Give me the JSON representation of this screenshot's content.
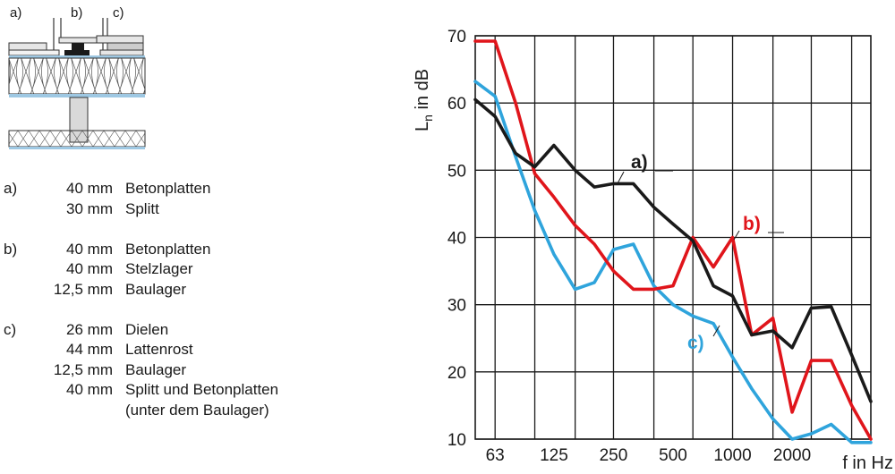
{
  "diagram": {
    "labels": [
      "a)",
      "b)",
      "c)"
    ]
  },
  "legend": [
    {
      "key": "a)",
      "layers": [
        {
          "thickness": "40 mm",
          "material": "Betonplatten"
        },
        {
          "thickness": "30 mm",
          "material": "Splitt"
        }
      ]
    },
    {
      "key": "b)",
      "layers": [
        {
          "thickness": "40 mm",
          "material": "Betonplatten"
        },
        {
          "thickness": "40 mm",
          "material": "Stelzlager"
        },
        {
          "thickness": "12,5 mm",
          "material": "Baulager"
        }
      ]
    },
    {
      "key": "c)",
      "layers": [
        {
          "thickness": "26 mm",
          "material": "Dielen"
        },
        {
          "thickness": "44 mm",
          "material": "Lattenrost"
        },
        {
          "thickness": "12,5 mm",
          "material": "Baulager"
        },
        {
          "thickness": "40 mm",
          "material": "Splitt und Betonplatten"
        },
        {
          "thickness": "",
          "material": "(unter dem Baulager)"
        }
      ]
    }
  ],
  "chart_data": {
    "type": "line",
    "ylabel": "Ln in dB",
    "ylabel_main": "L",
    "ylabel_sub": "n",
    "ylabel_rest": " in dB",
    "xlabel": "f in Hz",
    "ylim": [
      10,
      70
    ],
    "yticks": [
      "70",
      "60",
      "50",
      "40",
      "30",
      "20",
      "10"
    ],
    "xticks": [
      "63",
      "125",
      "250",
      "500",
      "1000",
      "2000"
    ],
    "x": [
      50,
      63,
      80,
      100,
      125,
      160,
      200,
      250,
      315,
      400,
      500,
      630,
      800,
      1000,
      1250,
      1600,
      2000,
      2500,
      3150,
      4000,
      5000
    ],
    "grid": true,
    "series": [
      {
        "name": "a)",
        "color": "#1a1a1a",
        "values": [
          60.5,
          58,
          52.5,
          50.5,
          53.7,
          50,
          47.5,
          48,
          48,
          44.5,
          42,
          39.5,
          32.8,
          31.3,
          25.5,
          26.1,
          23.6,
          29.5,
          29.7,
          22.5,
          15.6
        ]
      },
      {
        "name": "b)",
        "color": "#e0151b",
        "values": [
          69.2,
          69.2,
          60,
          49.5,
          46,
          41.8,
          39,
          35,
          32.3,
          32.3,
          32.8,
          40,
          35.6,
          40,
          25.5,
          28,
          14,
          21.7,
          21.7,
          15,
          10
        ]
      },
      {
        "name": "c)",
        "color": "#2fa4dc",
        "values": [
          63.2,
          61,
          52,
          44,
          37.5,
          32.3,
          33.3,
          38.2,
          39,
          32.8,
          30,
          28.3,
          27.2,
          22.2,
          17.5,
          13,
          10,
          10.8,
          12.2,
          9.5,
          9.5
        ]
      }
    ]
  }
}
